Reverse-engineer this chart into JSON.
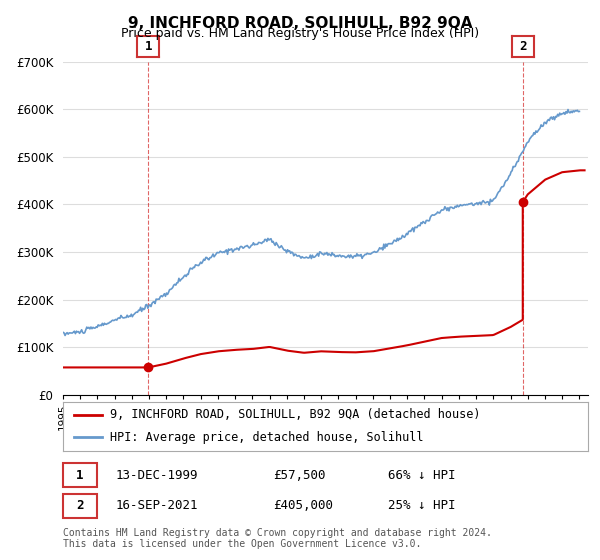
{
  "title": "9, INCHFORD ROAD, SOLIHULL, B92 9QA",
  "subtitle": "Price paid vs. HM Land Registry's House Price Index (HPI)",
  "legend_line1": "9, INCHFORD ROAD, SOLIHULL, B92 9QA (detached house)",
  "legend_line2": "HPI: Average price, detached house, Solihull",
  "annotation1_date": "13-DEC-1999",
  "annotation1_price": "£57,500",
  "annotation1_hpi": "66% ↓ HPI",
  "annotation2_date": "16-SEP-2021",
  "annotation2_price": "£405,000",
  "annotation2_hpi": "25% ↓ HPI",
  "sale1_x": 1999.95,
  "sale1_y": 57500,
  "sale2_x": 2021.71,
  "sale2_y": 405000,
  "footer": "Contains HM Land Registry data © Crown copyright and database right 2024.\nThis data is licensed under the Open Government Licence v3.0.",
  "hpi_color": "#6699cc",
  "price_color": "#cc0000",
  "annot_box_color": "#cc3333",
  "ylim": [
    0,
    700000
  ],
  "yticks": [
    0,
    100000,
    200000,
    300000,
    400000,
    500000,
    600000,
    700000
  ],
  "ytick_labels": [
    "£0",
    "£100K",
    "£200K",
    "£300K",
    "£400K",
    "£500K",
    "£600K",
    "£700K"
  ],
  "xlim_start": 1995.0,
  "xlim_end": 2025.5,
  "background_color": "#ffffff",
  "grid_color": "#dddddd",
  "hpi_years": [
    1995,
    1996,
    1997,
    1998,
    1999,
    2000,
    2001,
    2002,
    2003,
    2004,
    2005,
    2006,
    2007,
    2008,
    2009,
    2010,
    2011,
    2012,
    2013,
    2014,
    2015,
    2016,
    2017,
    2018,
    2019,
    2020,
    2021,
    2022,
    2023,
    2024,
    2025
  ],
  "hpi_prices": [
    128000,
    132000,
    143000,
    157000,
    167000,
    188000,
    213000,
    248000,
    278000,
    297000,
    307000,
    313000,
    327000,
    302000,
    287000,
    297000,
    292000,
    290000,
    297000,
    317000,
    338000,
    363000,
    388000,
    397000,
    402000,
    408000,
    463000,
    533000,
    572000,
    592000,
    597000
  ]
}
